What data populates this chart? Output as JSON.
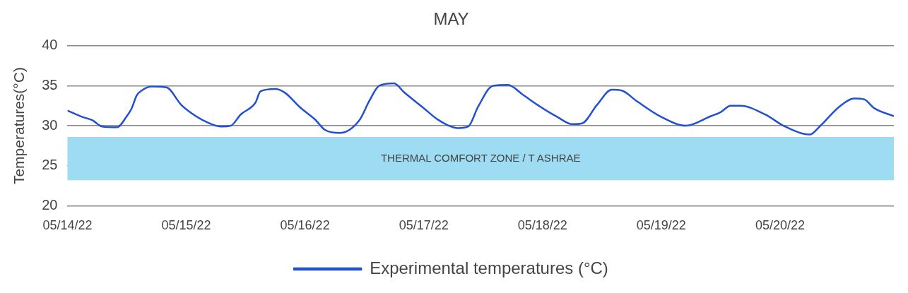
{
  "chart_data": {
    "type": "line",
    "title": "MAY",
    "ylabel": "Temperatures(°C)",
    "x": [
      "--05-14T00:00",
      "--05-14T03:00",
      "--05-14T05:00",
      "--05-14T07:00",
      "--05-14T10:00",
      "--05-14T12:00",
      "--05-14T13:00",
      "--05-14T14:00",
      "--05-14T15:00",
      "--05-14T17:00",
      "--05-14T20:00",
      "--05-14T23:00",
      "--05-15T01:00",
      "--05-15T04:00",
      "--05-15T07:00",
      "--05-15T09:00",
      "--05-15T11:00",
      "--05-15T14:00",
      "--05-15T15:00",
      "--05-15T18:00",
      "--05-15T20:00",
      "--05-15T23:00",
      "--05-16T02:00",
      "--05-16T04:00",
      "--05-16T07:00",
      "--05-16T11:00",
      "--05-16T13:00",
      "--05-16T15:00",
      "--05-16T18:00",
      "--05-16T20:00",
      "--05-17T00:00",
      "--05-17T03:00",
      "--05-17T07:00",
      "--05-17T09:00",
      "--05-17T11:00",
      "--05-17T14:00",
      "--05-17T17:00",
      "--05-17T20:00",
      "--05-17T23:00",
      "--05-18T03:00",
      "--05-18T06:00",
      "--05-18T08:00",
      "--05-18T11:00",
      "--05-18T14:00",
      "--05-18T16:00",
      "--05-18T19:00",
      "--05-19T00:00",
      "--05-19T05:00",
      "--05-19T10:00",
      "--05-19T12:00",
      "--05-19T14:00",
      "--05-19T16:00",
      "--05-19T21:00",
      "--05-20T01:00",
      "--05-20T06:00",
      "--05-20T08:00",
      "--05-20T12:00",
      "--05-20T15:00",
      "--05-20T17:00",
      "--05-20T19:00",
      "--05-20T23:00"
    ],
    "series": [
      {
        "name": "Experimental temperatures (°C)",
        "color": "#2250d0",
        "values": [
          31.9,
          31.1,
          30.7,
          29.9,
          29.8,
          31.2,
          32.2,
          33.8,
          34.4,
          34.9,
          34.8,
          32.6,
          31.6,
          30.5,
          29.9,
          30.0,
          31.4,
          32.9,
          34.3,
          34.6,
          34.1,
          32.3,
          30.8,
          29.5,
          29.1,
          30.7,
          33.1,
          35.0,
          35.3,
          34.2,
          32.2,
          30.7,
          29.7,
          29.9,
          32.4,
          35.0,
          35.1,
          33.9,
          32.6,
          31.1,
          30.2,
          30.3,
          32.6,
          34.5,
          34.4,
          33.1,
          31.1,
          30.0,
          31.2,
          31.7,
          32.5,
          32.5,
          31.4,
          29.9,
          28.9,
          29.9,
          32.4,
          33.4,
          33.3,
          32.2,
          31.2
        ]
      }
    ],
    "xlim": [
      "--05-14T00:00",
      "--05-20T23:00"
    ],
    "xticks": [
      {
        "value": "--05-14",
        "label": "05/14/22"
      },
      {
        "value": "--05-15",
        "label": "05/15/22"
      },
      {
        "value": "--05-16",
        "label": "05/16/22"
      },
      {
        "value": "--05-17",
        "label": "05/17/22"
      },
      {
        "value": "--05-18",
        "label": "05/18/22"
      },
      {
        "value": "--05-19",
        "label": "05/19/22"
      },
      {
        "value": "--05-20",
        "label": "05/20/22"
      }
    ],
    "ylim": [
      20,
      40
    ],
    "yticks": [
      20,
      25,
      30,
      35,
      40
    ],
    "bands": [
      {
        "axis": "y",
        "from": 23.2,
        "to": 28.6,
        "label": "THERMAL COMFORT ZONE / T ASHRAE",
        "color": "#9edcf3"
      }
    ],
    "grid": "y",
    "legend": "bottom",
    "marker": "none",
    "line_style": "solid"
  }
}
